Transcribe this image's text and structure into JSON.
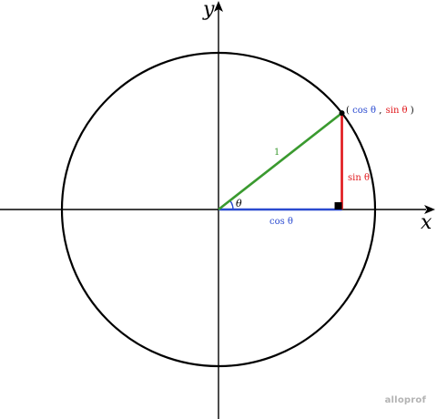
{
  "diagram": {
    "axes": {
      "x_label": "x",
      "y_label": "y"
    },
    "angle_label": "θ",
    "hypotenuse_label": "1",
    "cos_label": "cos θ",
    "sin_label": "sin θ",
    "point_label": {
      "open": "(",
      "cos": "cos θ",
      "comma": ",",
      "sin": "sin θ",
      "close": ")"
    },
    "colors": {
      "hypotenuse": "#3a9a2f",
      "cosine": "#2a4ad0",
      "sine": "#e0161a",
      "angle_arc": "#2a4ad0",
      "axis": "#000000",
      "circle": "#000000"
    },
    "angle_degrees": 38
  },
  "watermark": {
    "text": "alloprof"
  }
}
